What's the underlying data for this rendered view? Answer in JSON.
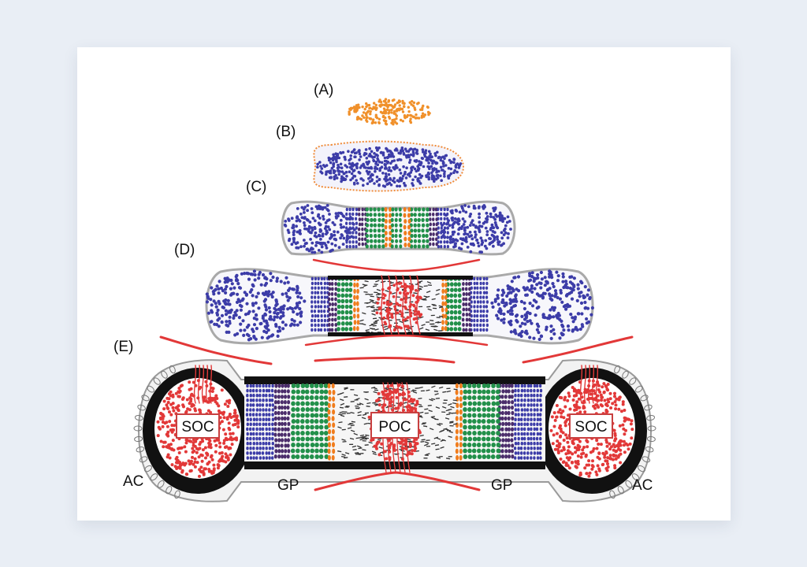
{
  "stages": [
    "(A)",
    "(B)",
    "(C)",
    "(D)",
    "(E)"
  ],
  "labels": {
    "soc_left": "SOC",
    "poc": "POC",
    "soc_right": "SOC",
    "ac_left": "AC",
    "gp_left": "GP",
    "gp_right": "GP",
    "ac_right": "AC"
  },
  "colors": {
    "mesenchyme": "#f0902a",
    "resting": "#3c3ca8",
    "prehypertrophic": "#4a2c6a",
    "proliferative": "#22904a",
    "hypertrophic_border": "#f07c1c",
    "bone": "#222222",
    "vessel": "#e23838"
  }
}
